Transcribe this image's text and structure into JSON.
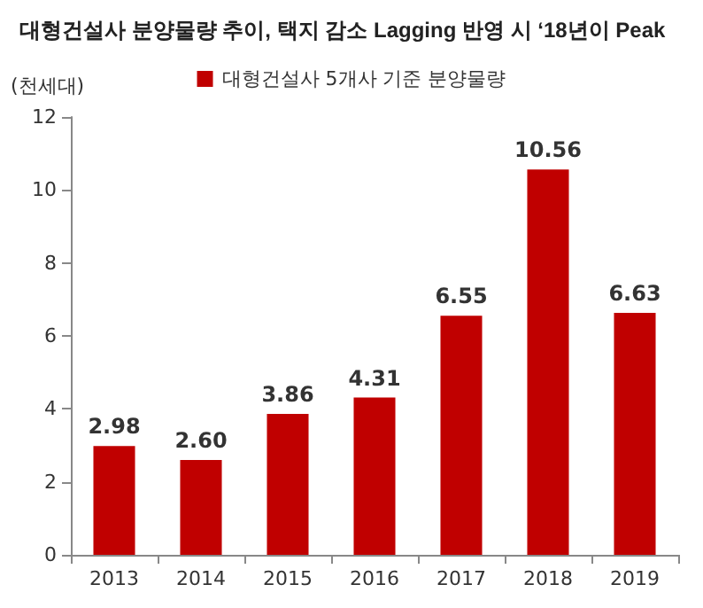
{
  "chart_data": {
    "type": "bar",
    "title": "대형건설사 분양물량 추이, 택지 감소 Lagging 반영 시 ‘18년이 Peak",
    "ylabel": "(천세대)",
    "categories": [
      "2013",
      "2014",
      "2015",
      "2016",
      "2017",
      "2018",
      "2019"
    ],
    "series": [
      {
        "name": "대형건설사 5개사 기준 분양물량",
        "color": "#c00000",
        "values": [
          2.98,
          2.6,
          3.86,
          4.31,
          6.55,
          10.56,
          6.63
        ]
      }
    ],
    "value_labels": [
      "2.98",
      "2.60",
      "3.86",
      "4.31",
      "6.55",
      "10.56",
      "6.63"
    ],
    "ylim": [
      0,
      12
    ],
    "yticks": [
      0,
      2,
      4,
      6,
      8,
      10,
      12
    ],
    "grid": false,
    "legend": "top"
  }
}
